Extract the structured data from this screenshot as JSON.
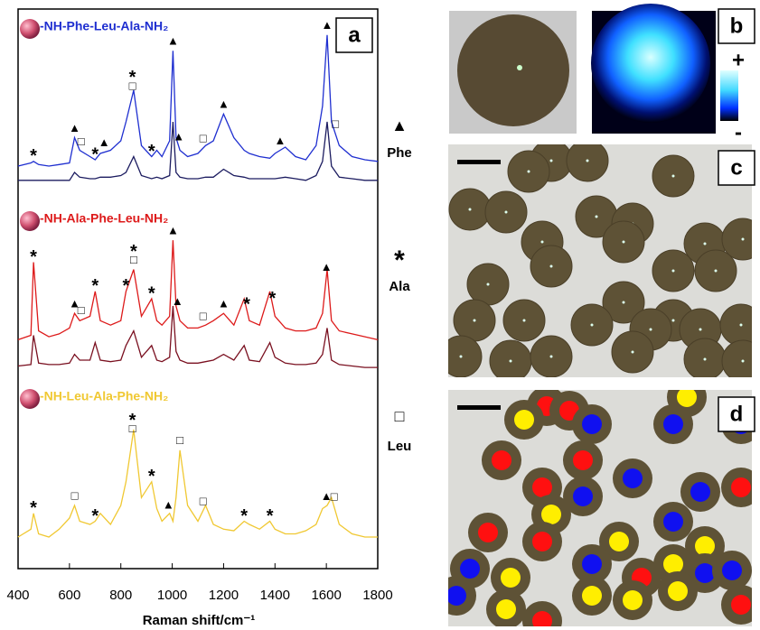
{
  "chart_data": {
    "type": "line",
    "x_label": "Raman shift/cm⁻¹",
    "xlim": [
      400,
      1800
    ],
    "xticks": [
      400,
      600,
      800,
      1000,
      1200,
      1400,
      1600,
      1800
    ],
    "ylim": [
      0,
      100
    ],
    "x": [
      400,
      450,
      460,
      480,
      520,
      560,
      600,
      620,
      640,
      680,
      700,
      720,
      760,
      800,
      820,
      850,
      880,
      920,
      940,
      960,
      990,
      1003,
      1015,
      1030,
      1060,
      1100,
      1130,
      1160,
      1200,
      1240,
      1280,
      1300,
      1340,
      1380,
      1400,
      1440,
      1480,
      1520,
      1560,
      1585,
      1603,
      1620,
      1650,
      1700,
      1750,
      1800
    ],
    "series": [
      {
        "name": "-NH-Phe-Leu-Ala-NH₂",
        "color": "#1f2fd0",
        "values": [
          12,
          14,
          15,
          13,
          12,
          13,
          14,
          30,
          22,
          18,
          16,
          20,
          22,
          28,
          40,
          60,
          25,
          18,
          22,
          18,
          28,
          85,
          30,
          22,
          18,
          20,
          25,
          28,
          45,
          30,
          22,
          20,
          18,
          17,
          20,
          24,
          18,
          16,
          25,
          50,
          95,
          40,
          25,
          18,
          16,
          15
        ],
        "markers": [
          {
            "x": 460,
            "text": "*"
          },
          {
            "x": 620,
            "text": "▲"
          },
          {
            "x": 645,
            "text": "□"
          },
          {
            "x": 700,
            "text": "*"
          },
          {
            "x": 735,
            "text": "▲"
          },
          {
            "x": 845,
            "text": "□"
          },
          {
            "x": 845,
            "text": "*"
          },
          {
            "x": 920,
            "text": "*"
          },
          {
            "x": 1003,
            "text": "▲"
          },
          {
            "x": 1025,
            "text": "▲"
          },
          {
            "x": 1120,
            "text": "□"
          },
          {
            "x": 1200,
            "text": "▲"
          },
          {
            "x": 1420,
            "text": "▲"
          },
          {
            "x": 1603,
            "text": "▲"
          },
          {
            "x": 1635,
            "text": "□"
          }
        ]
      },
      {
        "color": "#1c1c60",
        "values": [
          3,
          3,
          3,
          3,
          3,
          3,
          3,
          8,
          5,
          4,
          4,
          5,
          5,
          6,
          8,
          18,
          6,
          4,
          5,
          4,
          6,
          40,
          8,
          5,
          4,
          4,
          5,
          5,
          10,
          6,
          5,
          4,
          4,
          4,
          4,
          5,
          4,
          3,
          6,
          15,
          40,
          12,
          5,
          4,
          3,
          3
        ]
      },
      {
        "name": "-NH-Ala-Phe-Leu-NH₂",
        "color": "#dd1a1a",
        "values": [
          22,
          25,
          75,
          28,
          24,
          26,
          30,
          40,
          35,
          38,
          55,
          35,
          32,
          35,
          55,
          70,
          38,
          50,
          35,
          32,
          38,
          90,
          45,
          35,
          30,
          30,
          32,
          35,
          40,
          32,
          50,
          35,
          32,
          55,
          38,
          30,
          28,
          28,
          30,
          40,
          70,
          35,
          28,
          26,
          24,
          22
        ],
        "markers": [
          {
            "x": 460,
            "text": "*"
          },
          {
            "x": 620,
            "text": "▲"
          },
          {
            "x": 645,
            "text": "□"
          },
          {
            "x": 700,
            "text": "*"
          },
          {
            "x": 820,
            "text": "*"
          },
          {
            "x": 850,
            "text": "□"
          },
          {
            "x": 850,
            "text": "*"
          },
          {
            "x": 920,
            "text": "*"
          },
          {
            "x": 1003,
            "text": "▲"
          },
          {
            "x": 1020,
            "text": "▲"
          },
          {
            "x": 1120,
            "text": "□"
          },
          {
            "x": 1200,
            "text": "▲"
          },
          {
            "x": 1290,
            "text": "*"
          },
          {
            "x": 1390,
            "text": "*"
          },
          {
            "x": 1600,
            "text": "▲"
          }
        ]
      },
      {
        "color": "#7a1020",
        "values": [
          4,
          5,
          25,
          6,
          5,
          5,
          6,
          12,
          8,
          8,
          20,
          8,
          7,
          8,
          18,
          28,
          10,
          18,
          8,
          7,
          10,
          45,
          14,
          8,
          6,
          6,
          7,
          8,
          12,
          8,
          18,
          8,
          7,
          20,
          10,
          6,
          5,
          5,
          6,
          12,
          30,
          8,
          5,
          4,
          3,
          3
        ]
      },
      {
        "name": "-NH-Leu-Ala-Phe-NH₂",
        "color": "#f0c832",
        "values": [
          20,
          25,
          35,
          22,
          20,
          25,
          32,
          40,
          30,
          28,
          30,
          35,
          28,
          40,
          55,
          88,
          45,
          55,
          38,
          30,
          35,
          30,
          45,
          75,
          40,
          30,
          40,
          28,
          25,
          24,
          30,
          28,
          25,
          30,
          25,
          22,
          22,
          24,
          28,
          38,
          40,
          45,
          28,
          22,
          20,
          20
        ],
        "markers": [
          {
            "x": 460,
            "text": "*"
          },
          {
            "x": 620,
            "text": "□"
          },
          {
            "x": 700,
            "text": "*"
          },
          {
            "x": 845,
            "text": "□"
          },
          {
            "x": 845,
            "text": "*"
          },
          {
            "x": 920,
            "text": "*"
          },
          {
            "x": 985,
            "text": "▲"
          },
          {
            "x": 1030,
            "text": "□"
          },
          {
            "x": 1120,
            "text": "□"
          },
          {
            "x": 1280,
            "text": "*"
          },
          {
            "x": 1380,
            "text": "*"
          },
          {
            "x": 1600,
            "text": "▲"
          },
          {
            "x": 1630,
            "text": "□"
          }
        ]
      }
    ],
    "legend": [
      {
        "symbol": "▲",
        "label": "Phe"
      },
      {
        "symbol": "*",
        "label": "Ala"
      },
      {
        "symbol": "□",
        "label": "Leu"
      }
    ]
  },
  "panel_labels": [
    "a",
    "b",
    "c",
    "d"
  ],
  "colorbar": {
    "max_label": "+",
    "min_label": "-"
  }
}
